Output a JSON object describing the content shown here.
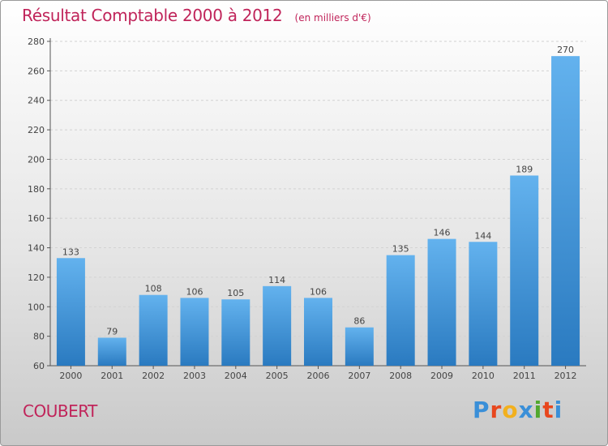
{
  "header": {
    "title": "Résultat Comptable 2000 à 2012",
    "unit": "(en milliers d'€)"
  },
  "footer": {
    "commune": "COUBERT",
    "logo": [
      "P",
      "r",
      "o",
      "x",
      "i",
      "t",
      "i"
    ]
  },
  "colors": {
    "title": "#c0245a",
    "bar_top": "#63b2ee",
    "bar_bottom": "#2a7ac0",
    "logo": [
      "#3a8fd8",
      "#e8471e",
      "#f2b01e",
      "#3a8fd8",
      "#52a82f",
      "#e8471e",
      "#3a8fd8"
    ]
  },
  "chart_data": {
    "type": "bar",
    "categories": [
      "2000",
      "2001",
      "2002",
      "2003",
      "2004",
      "2005",
      "2006",
      "2007",
      "2008",
      "2009",
      "2010",
      "2011",
      "2012"
    ],
    "values": [
      133,
      79,
      108,
      106,
      105,
      114,
      106,
      86,
      135,
      146,
      144,
      189,
      270
    ],
    "ylim": [
      60,
      280
    ],
    "yticks": [
      60,
      80,
      100,
      120,
      140,
      160,
      180,
      200,
      220,
      240,
      260,
      280
    ],
    "grid": true,
    "legend": "none"
  }
}
